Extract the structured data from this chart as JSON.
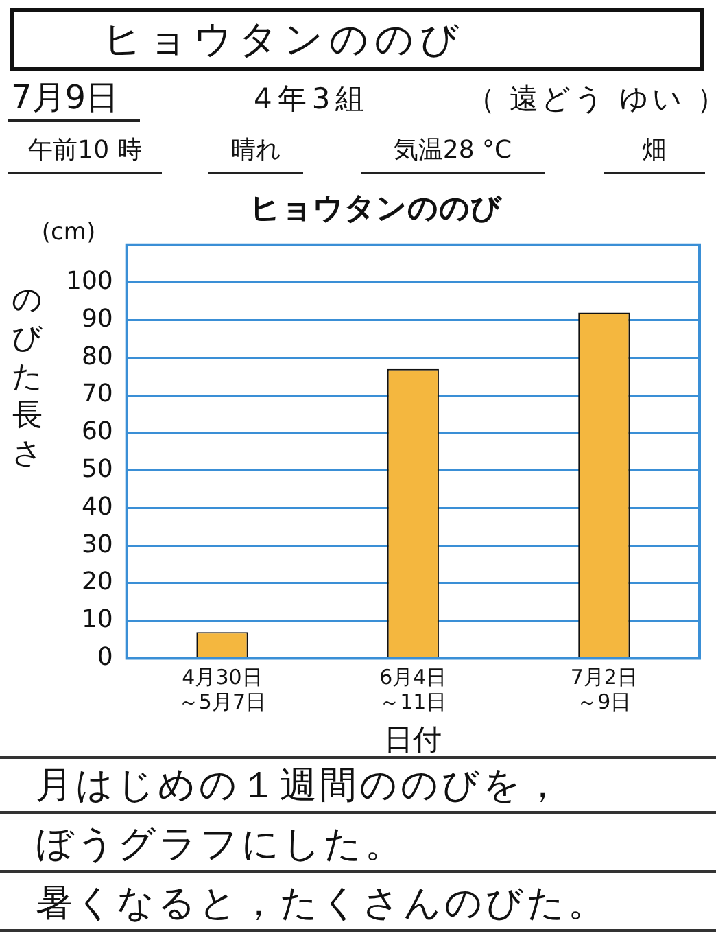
{
  "chart_data": {
    "type": "bar",
    "title": "ヒョウタンののび",
    "xlabel": "日付",
    "ylabel": "のびた長さ",
    "categories": [
      "4月30日～5月7日",
      "6月4日～11日",
      "7月2日～9日"
    ],
    "values": [
      7,
      77,
      92
    ],
    "color": "#f4b73f",
    "ylim": [
      0,
      110
    ],
    "yticks": [
      0,
      10,
      20,
      30,
      40,
      50,
      60,
      70,
      80,
      90,
      100
    ],
    "grid": "y",
    "legend": false,
    "annotations": [
      "ヒョウタンののび",
      "7月9日",
      "4年3組",
      "（ 遠どう ゆい ）",
      "午前10 時",
      "晴れ",
      "気温28 °C",
      "畑",
      "(cm)",
      "月はじめの１週間ののびを，",
      "ぼうグラフにした。",
      "暑くなると，たくさんのびた。"
    ]
  }
}
